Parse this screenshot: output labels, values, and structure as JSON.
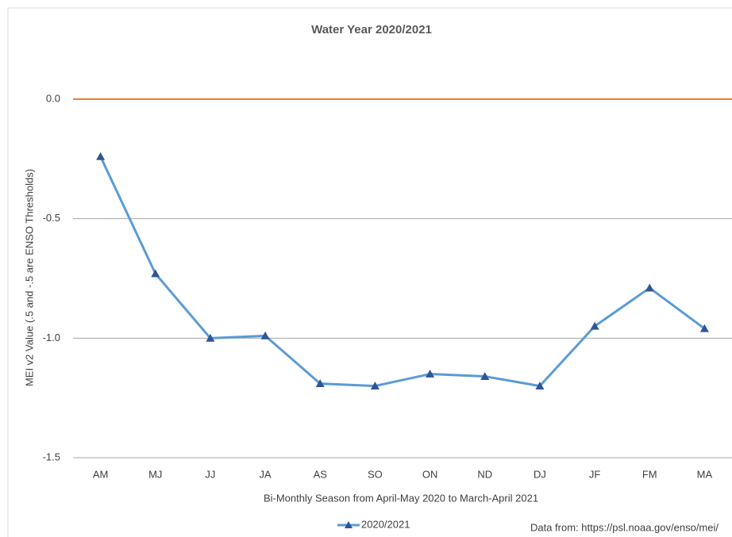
{
  "chart_data": {
    "type": "line",
    "title": "Water Year 2020/2021",
    "x_label": "Bi-Monthly Season from April-May 2020 to March-April 2021",
    "y_label": "MEI v2 Value (.5 and -.5 are ENSO Thresholds)",
    "note": "Data from: https://psl.noaa.gov/enso/mei/",
    "categories": [
      "AM",
      "MJ",
      "JJ",
      "JA",
      "AS",
      "SO",
      "ON",
      "ND",
      "DJ",
      "JF",
      "FM",
      "MA"
    ],
    "series": [
      {
        "name": "2020/2021",
        "color": "#5b9bd5",
        "marker_color": "#2f5597",
        "values": [
          -0.24,
          -0.73,
          -1.0,
          -0.99,
          -1.19,
          -1.2,
          -1.15,
          -1.16,
          -1.2,
          -0.95,
          -0.79,
          -0.96
        ]
      }
    ],
    "ylim": [
      -1.5,
      0
    ],
    "yticks": [
      {
        "value": 0,
        "label": "0.0"
      },
      {
        "value": -0.5,
        "label": "-0.5"
      },
      {
        "value": -1,
        "label": "-1.0"
      },
      {
        "value": -1.5,
        "label": "-1.5"
      }
    ],
    "reference_line": {
      "value": 0,
      "color": "#ed7d31"
    },
    "grid": true,
    "legend": "bottom"
  }
}
